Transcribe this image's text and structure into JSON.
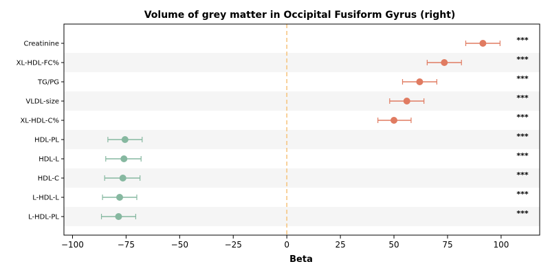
{
  "chart_data": {
    "type": "forest",
    "title": "Volume of grey matter in Occipital Fusiform Gyrus (right)",
    "xlabel": "Beta",
    "xlim": [
      -104,
      118
    ],
    "xticks": [
      -100,
      -75,
      -50,
      -25,
      0,
      25,
      50,
      75,
      100
    ],
    "xtick_labels": [
      "−100",
      "−75",
      "−50",
      "−25",
      "0",
      "25",
      "50",
      "75",
      "100"
    ],
    "reference_line": 0,
    "reference_color": "#f5c27a",
    "positive_color": "#e07b61",
    "negative_color": "#86b8a0",
    "band_color": "#f5f5f5",
    "rows": [
      {
        "label": "Creatinine",
        "beta": 91.5,
        "low": 83.5,
        "high": 99.5,
        "sig": "***"
      },
      {
        "label": "XL-HDL-FC%",
        "beta": 73.5,
        "low": 65.5,
        "high": 81.5,
        "sig": "***"
      },
      {
        "label": "TG/PG",
        "beta": 62.0,
        "low": 54.0,
        "high": 70.0,
        "sig": "***"
      },
      {
        "label": "VLDL-size",
        "beta": 56.0,
        "low": 48.0,
        "high": 64.0,
        "sig": "***"
      },
      {
        "label": "XL-HDL-C%",
        "beta": 50.0,
        "low": 42.5,
        "high": 58.0,
        "sig": "***"
      },
      {
        "label": "HDL-PL",
        "beta": -75.5,
        "low": -83.5,
        "high": -67.5,
        "sig": "***"
      },
      {
        "label": "HDL-L",
        "beta": -76.0,
        "low": -84.5,
        "high": -68.0,
        "sig": "***"
      },
      {
        "label": "HDL-C",
        "beta": -76.5,
        "low": -85.0,
        "high": -68.5,
        "sig": "***"
      },
      {
        "label": "L-HDL-L",
        "beta": -78.0,
        "low": -86.0,
        "high": -70.0,
        "sig": "***"
      },
      {
        "label": "L-HDL-PL",
        "beta": -78.5,
        "low": -86.5,
        "high": -70.5,
        "sig": "***"
      }
    ]
  }
}
